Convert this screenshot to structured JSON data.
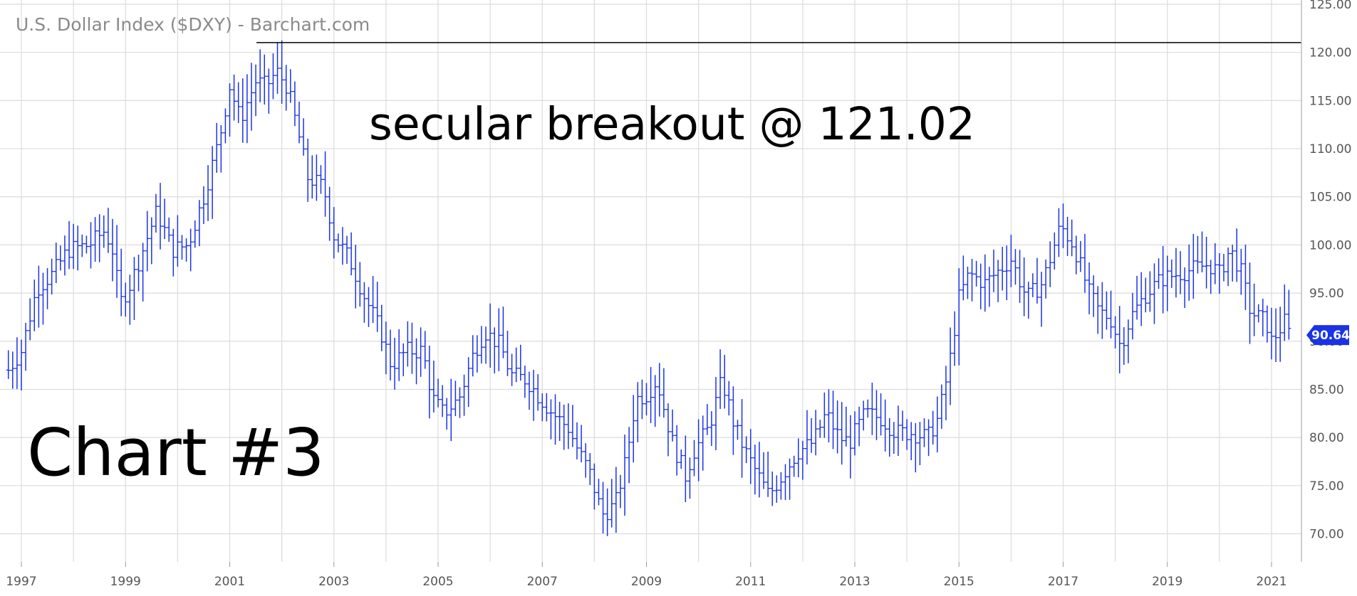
{
  "chart_data": {
    "type": "ohlc-bar",
    "title": "U.S. Dollar Index ($DXY) - Barchart.com",
    "annotations": [
      "secular breakout @ 121.02",
      "Chart #3"
    ],
    "last_price": "90.64",
    "resistance_level": 121.02,
    "ylim": [
      66,
      125
    ],
    "xlim": [
      1996.75,
      2021.55
    ],
    "y_ticks": [
      "125.00",
      "120.00",
      "115.00",
      "110.00",
      "105.00",
      "100.00",
      "95.00",
      "90.00",
      "85.00",
      "80.00",
      "75.00",
      "70.00"
    ],
    "x_ticks": [
      "1997",
      "1999",
      "2001",
      "2003",
      "2005",
      "2007",
      "2009",
      "2011",
      "2013",
      "2015",
      "2017",
      "2019",
      "2021"
    ],
    "grid": true,
    "colors": {
      "series": "#1a33e6",
      "grid": "#dcdcdc",
      "badge": "#1a33e6",
      "resistance": "#000000"
    },
    "series": [
      {
        "name": "DXY",
        "interval": "monthly",
        "keypoints": [
          [
            1996.75,
            87.0
          ],
          [
            1997.0,
            89.0
          ],
          [
            1997.3,
            95.5
          ],
          [
            1997.6,
            97.0
          ],
          [
            1997.9,
            99.5
          ],
          [
            1998.3,
            100.0
          ],
          [
            1998.6,
            101.5
          ],
          [
            1998.75,
            99.5
          ],
          [
            1998.9,
            94.0
          ],
          [
            1999.1,
            96.0
          ],
          [
            1999.4,
            100.5
          ],
          [
            1999.6,
            103.5
          ],
          [
            1999.9,
            99.5
          ],
          [
            2000.2,
            100.0
          ],
          [
            2000.5,
            105.0
          ],
          [
            2000.8,
            111.0
          ],
          [
            2001.0,
            116.5
          ],
          [
            2001.2,
            113.0
          ],
          [
            2001.5,
            117.0
          ],
          [
            2001.7,
            116.5
          ],
          [
            2001.9,
            118.0
          ],
          [
            2002.1,
            116.5
          ],
          [
            2002.3,
            112.0
          ],
          [
            2002.5,
            107.0
          ],
          [
            2002.8,
            106.0
          ],
          [
            2003.0,
            101.0
          ],
          [
            2003.3,
            98.5
          ],
          [
            2003.6,
            94.5
          ],
          [
            2003.9,
            91.0
          ],
          [
            2004.1,
            87.5
          ],
          [
            2004.4,
            89.0
          ],
          [
            2004.7,
            89.0
          ],
          [
            2004.9,
            84.0
          ],
          [
            2005.1,
            82.5
          ],
          [
            2005.4,
            84.0
          ],
          [
            2005.7,
            89.0
          ],
          [
            2005.9,
            91.0
          ],
          [
            2006.2,
            89.5
          ],
          [
            2006.4,
            86.5
          ],
          [
            2006.7,
            86.0
          ],
          [
            2006.9,
            84.5
          ],
          [
            2007.2,
            82.5
          ],
          [
            2007.5,
            81.0
          ],
          [
            2007.7,
            78.5
          ],
          [
            2007.9,
            76.5
          ],
          [
            2008.15,
            72.0
          ],
          [
            2008.4,
            73.0
          ],
          [
            2008.6,
            77.5
          ],
          [
            2008.8,
            84.0
          ],
          [
            2009.0,
            84.5
          ],
          [
            2009.2,
            86.0
          ],
          [
            2009.5,
            79.5
          ],
          [
            2009.75,
            76.0
          ],
          [
            2009.9,
            78.5
          ],
          [
            2010.2,
            81.0
          ],
          [
            2010.45,
            86.0
          ],
          [
            2010.7,
            81.0
          ],
          [
            2010.9,
            78.5
          ],
          [
            2011.1,
            76.5
          ],
          [
            2011.35,
            74.0
          ],
          [
            2011.6,
            76.0
          ],
          [
            2011.9,
            78.5
          ],
          [
            2012.2,
            79.5
          ],
          [
            2012.45,
            82.5
          ],
          [
            2012.7,
            80.0
          ],
          [
            2012.9,
            79.5
          ],
          [
            2013.2,
            82.5
          ],
          [
            2013.5,
            82.0
          ],
          [
            2013.8,
            80.5
          ],
          [
            2014.1,
            80.5
          ],
          [
            2014.4,
            80.0
          ],
          [
            2014.6,
            82.0
          ],
          [
            2014.8,
            87.0
          ],
          [
            2015.0,
            94.5
          ],
          [
            2015.2,
            97.0
          ],
          [
            2015.5,
            96.0
          ],
          [
            2015.8,
            97.5
          ],
          [
            2016.0,
            98.5
          ],
          [
            2016.3,
            94.5
          ],
          [
            2016.6,
            96.0
          ],
          [
            2016.95,
            102.0
          ],
          [
            2017.2,
            100.0
          ],
          [
            2017.5,
            95.0
          ],
          [
            2017.7,
            93.0
          ],
          [
            2017.9,
            92.5
          ],
          [
            2018.1,
            89.5
          ],
          [
            2018.3,
            92.5
          ],
          [
            2018.6,
            95.0
          ],
          [
            2018.9,
            96.5
          ],
          [
            2019.2,
            97.0
          ],
          [
            2019.5,
            97.5
          ],
          [
            2019.8,
            98.0
          ],
          [
            2020.0,
            97.0
          ],
          [
            2020.2,
            99.5
          ],
          [
            2020.4,
            97.5
          ],
          [
            2020.6,
            93.0
          ],
          [
            2020.9,
            92.0
          ],
          [
            2021.0,
            90.0
          ],
          [
            2021.25,
            92.0
          ],
          [
            2021.35,
            90.64
          ]
        ]
      }
    ]
  }
}
